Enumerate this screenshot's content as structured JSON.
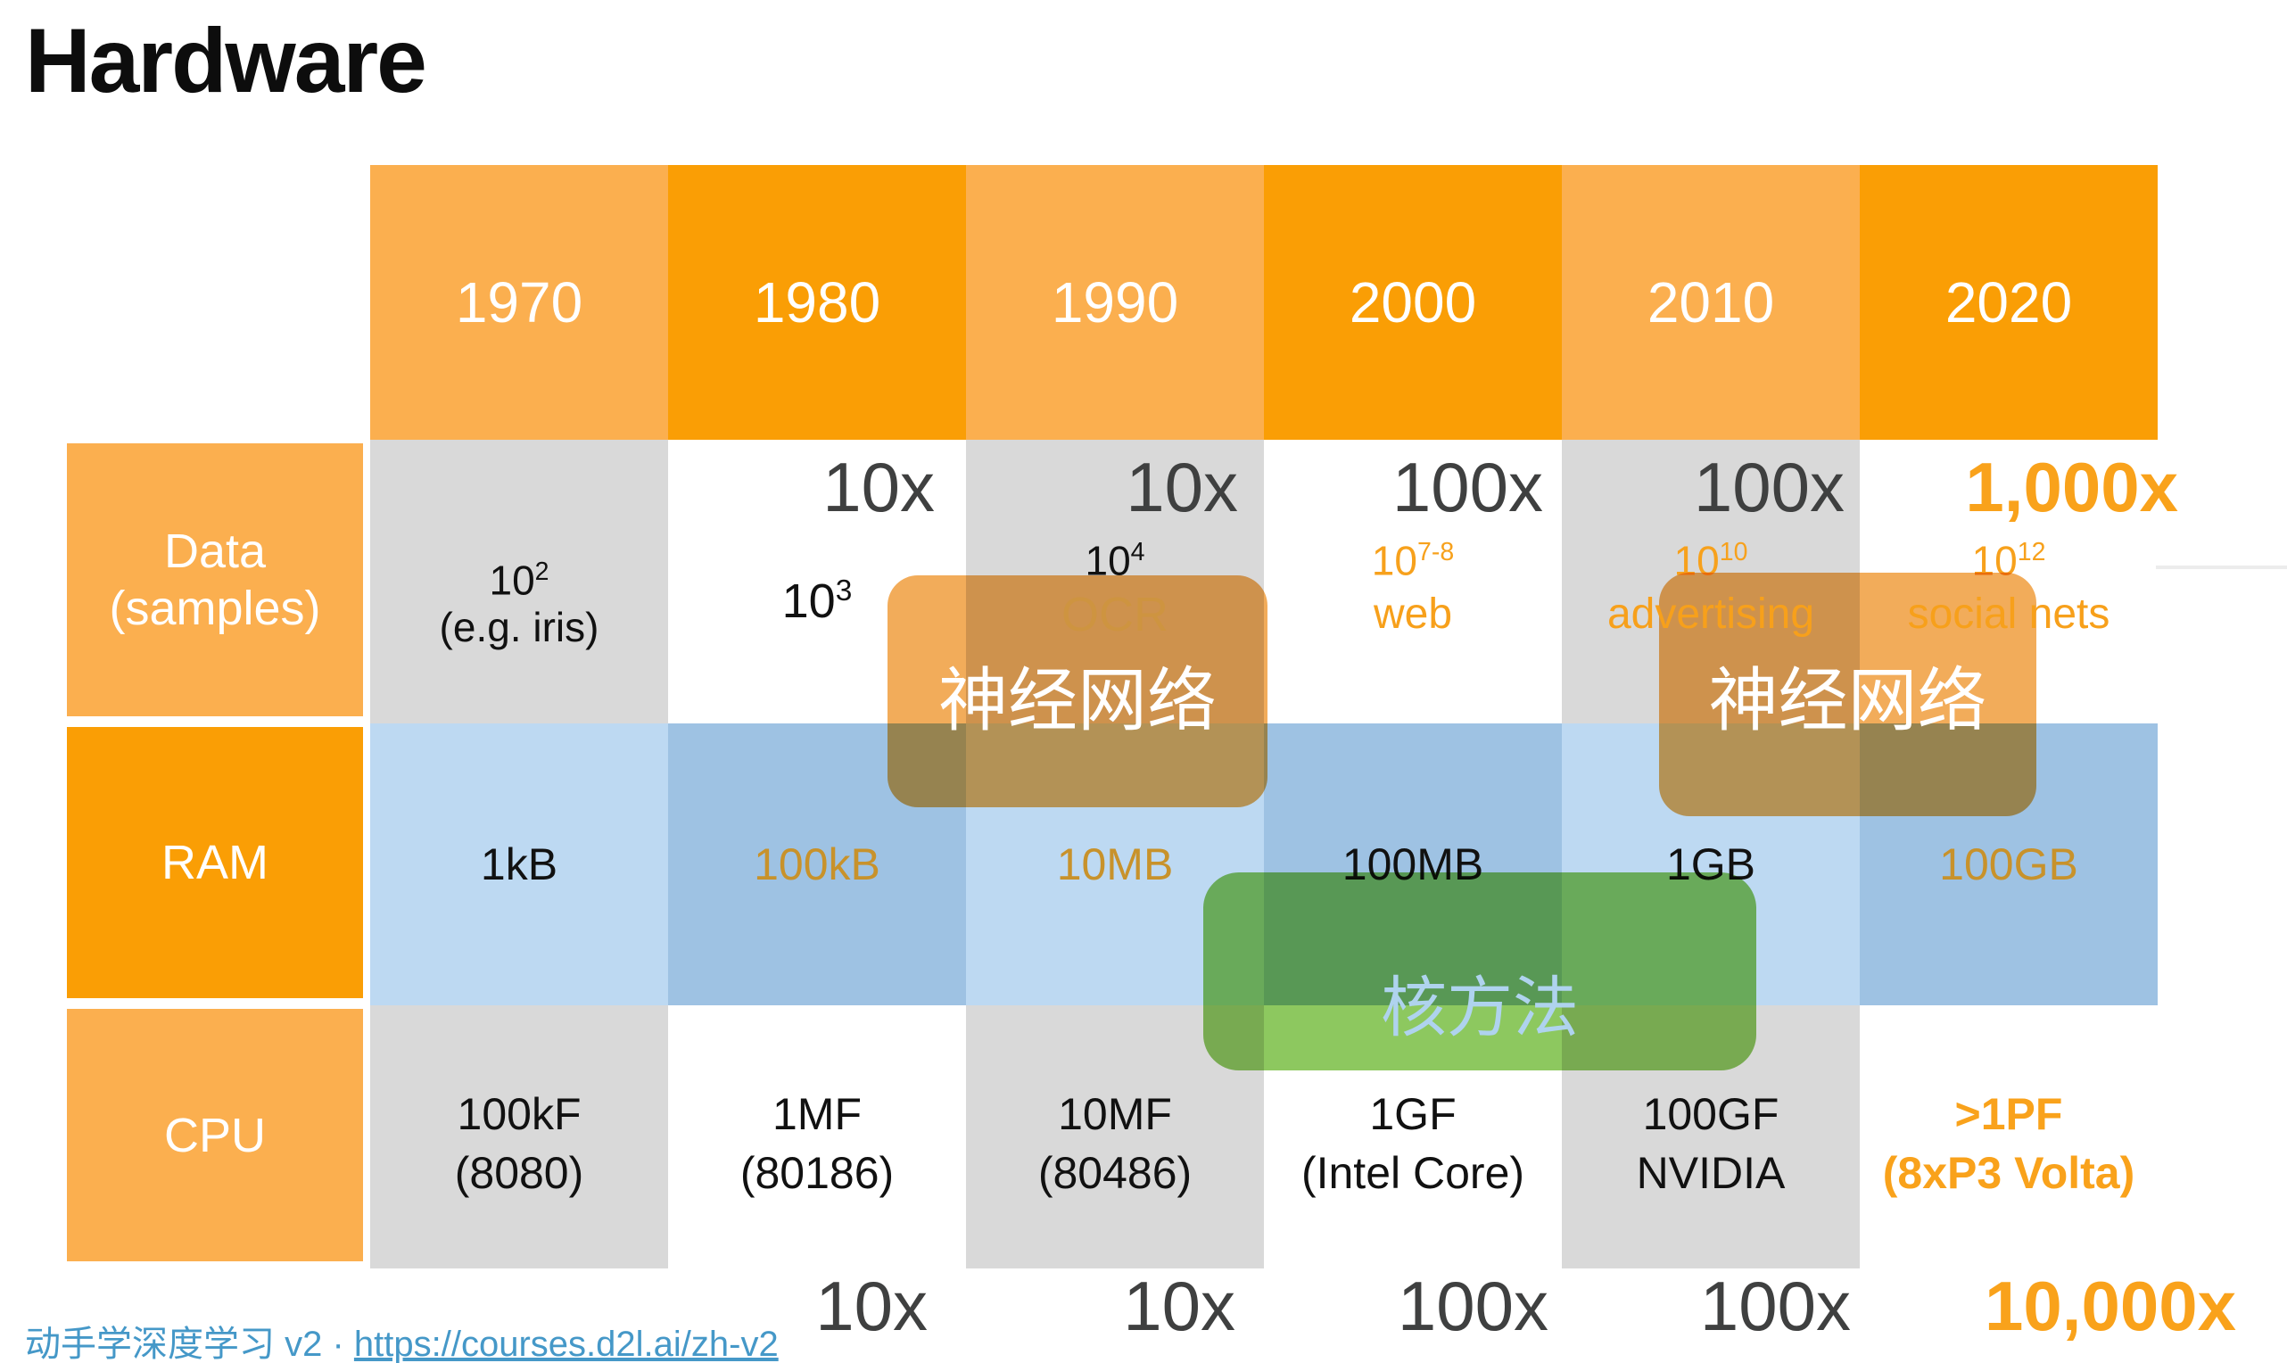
{
  "slide": {
    "title": "Hardware"
  },
  "table": {
    "row_labels": [
      "Data\n(samples)",
      "RAM",
      "CPU"
    ],
    "columns": [
      {
        "year": "1970",
        "data_multiplier": "",
        "data_power_base": "10",
        "data_power_sup": "2",
        "data_label": "(e.g. iris)",
        "ram_value": "1kB",
        "cpu_line1": "100kF",
        "cpu_line2": "(8080)",
        "bottom_multiplier": ""
      },
      {
        "year": "1980",
        "data_multiplier": "10x",
        "data_power_base": "10",
        "data_power_sup": "3",
        "data_label": "",
        "ram_value": "100kB",
        "cpu_line1": "1MF",
        "cpu_line2": "(80186)",
        "bottom_multiplier": "10x"
      },
      {
        "year": "1990",
        "data_multiplier": "10x",
        "data_power_base": "10",
        "data_power_sup": "4",
        "data_label": "OCR",
        "ram_value": "10MB",
        "cpu_line1": "10MF",
        "cpu_line2": "(80486)",
        "bottom_multiplier": "10x"
      },
      {
        "year": "2000",
        "data_multiplier": "100x",
        "data_power_base": "10",
        "data_power_sup": "7-8",
        "data_label": "web",
        "ram_value": "100MB",
        "cpu_line1": "1GF",
        "cpu_line2": "(Intel Core)",
        "bottom_multiplier": "100x"
      },
      {
        "year": "2010",
        "data_multiplier": "100x",
        "data_power_base": "10",
        "data_power_sup": "10",
        "data_label": "advertising",
        "ram_value": "1GB",
        "cpu_line1": "100GF",
        "cpu_line2": "NVIDIA",
        "bottom_multiplier": "100x"
      },
      {
        "year": "2020",
        "data_multiplier": "1,000x",
        "data_power_base": "10",
        "data_power_sup": "12",
        "data_label": "social nets",
        "ram_value": "100GB",
        "cpu_line1": ">1PF",
        "cpu_line2": "(8xP3 Volta)",
        "bottom_multiplier": "10,000x"
      }
    ]
  },
  "overlays": {
    "neural_network_1": "神经网络",
    "neural_network_2": "神经网络",
    "kernel_methods": "核方法"
  },
  "footer": {
    "text": "动手学深度学习 v2",
    "separator": " · ",
    "link": "https://courses.d2l.ai/zh-v2"
  },
  "colors": {
    "header_orange_light": "#FBAF4F",
    "header_orange_dark": "#FA9E05",
    "cell_gray": "#D9D9D9",
    "cell_blue_light": "#BDD9F2",
    "cell_blue_dark": "#9EC2E3",
    "accent_orange": "#F7A11C",
    "gold_on_blue": "#C8922B",
    "multiplier_gray": "#3F4040",
    "overlay_orange": "#F2AC5A",
    "overlay_green": "#8DC85F",
    "kernel_text_blue": "#AFD3EE",
    "footer_blue": "#4598C8"
  }
}
